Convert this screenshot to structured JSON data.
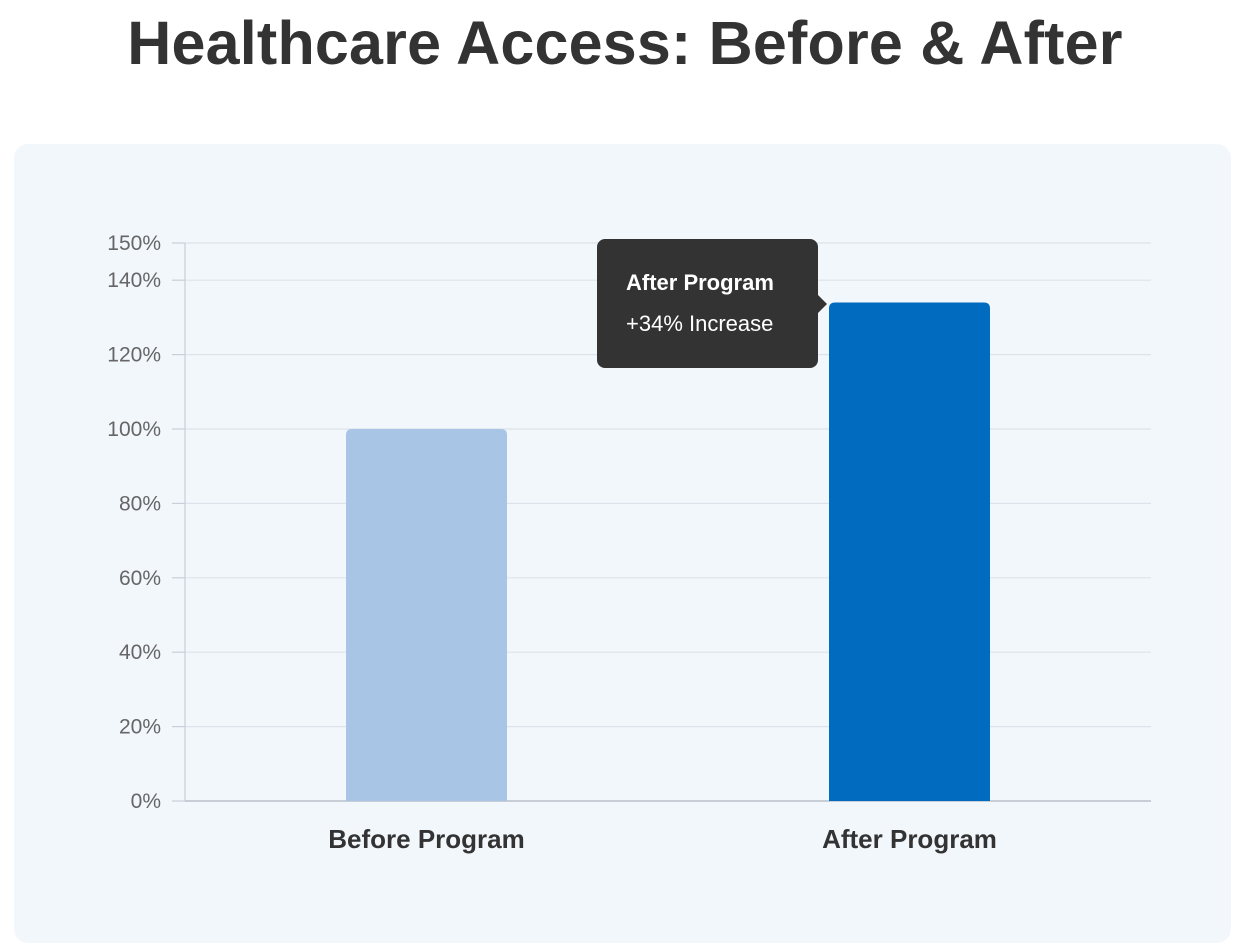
{
  "title": "Healthcare Access: Before & After",
  "chart_data": {
    "type": "bar",
    "categories": [
      "Before Program",
      "After Program"
    ],
    "values": [
      100,
      134
    ],
    "y_ticks": [
      0,
      20,
      40,
      60,
      80,
      100,
      120,
      140,
      150
    ],
    "ylim": [
      0,
      150
    ],
    "tick_suffix": "%",
    "xlabel": "",
    "ylabel": "",
    "grid": true,
    "colors": [
      "#a8c5e5",
      "#006bbf"
    ],
    "tooltip": {
      "category_index": 1,
      "title": "After Program",
      "text": "+34% Increase"
    }
  }
}
